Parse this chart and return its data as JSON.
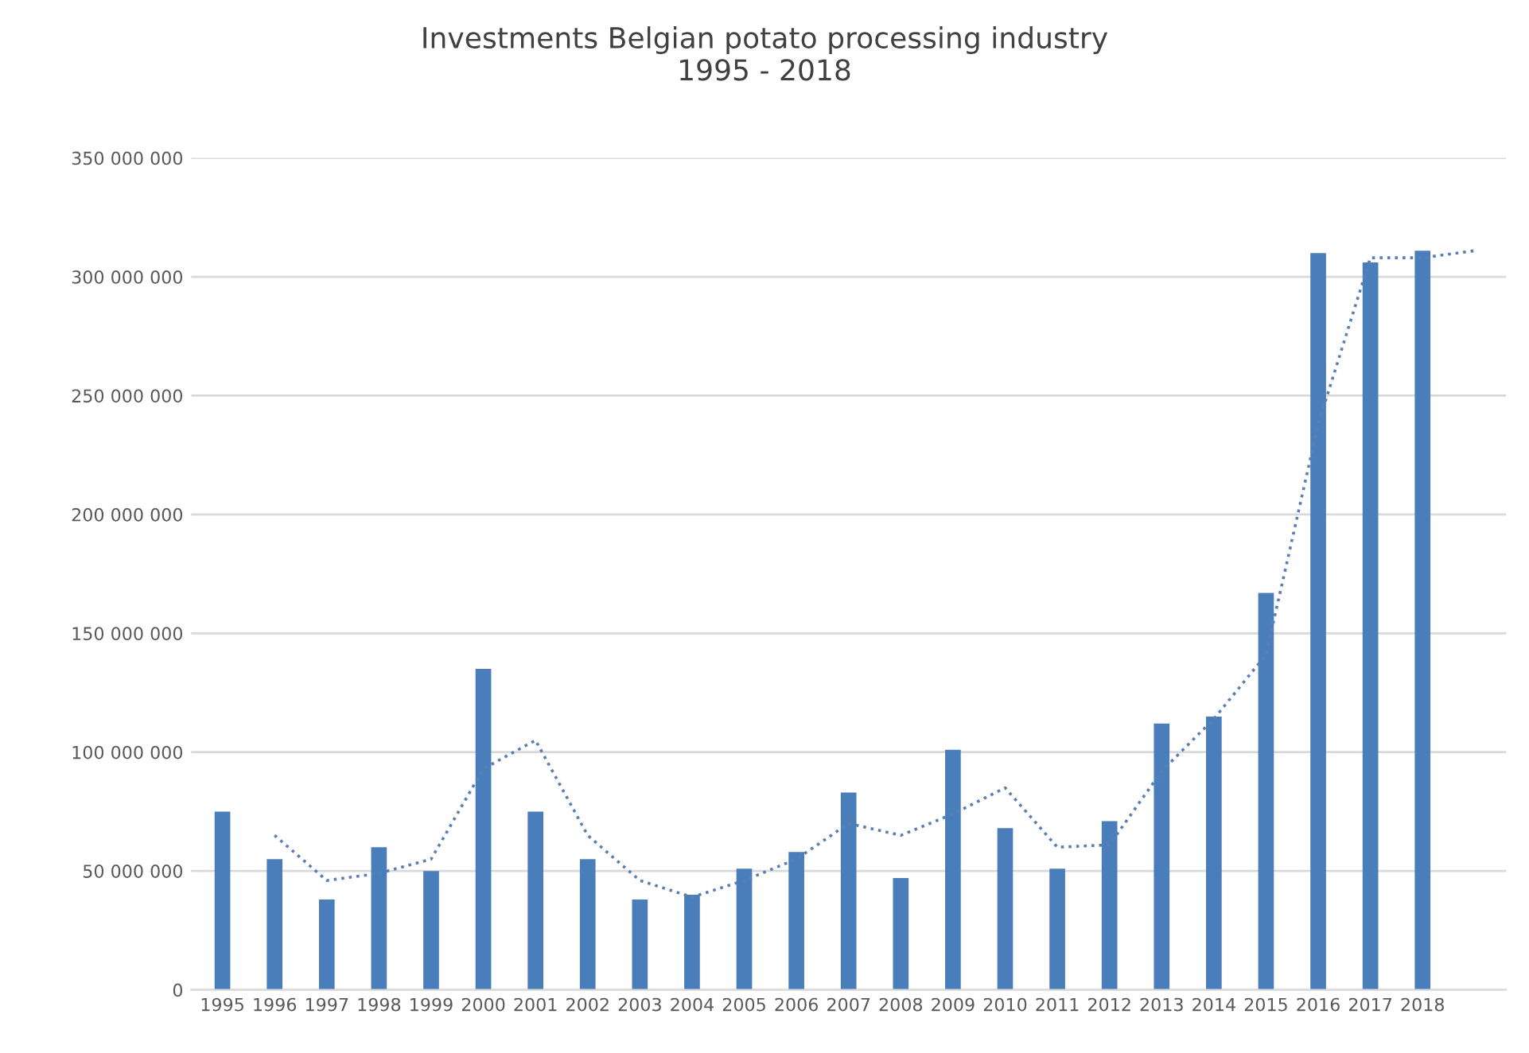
{
  "chart_data": {
    "type": "bar",
    "title": "Investments Belgian potato processing industry\n1995 - 2018",
    "categories": [
      "1995",
      "1996",
      "1997",
      "1998",
      "1999",
      "2000",
      "2001",
      "2002",
      "2003",
      "2004",
      "2005",
      "2006",
      "2007",
      "2008",
      "2009",
      "2010",
      "2011",
      "2012",
      "2013",
      "2014",
      "2015",
      "2016",
      "2017",
      "2018",
      null
    ],
    "series": [
      {
        "color": "#4a7ebb",
        "values": [
          75000000,
          55000000,
          38000000,
          60000000,
          50000000,
          135000000,
          75000000,
          55000000,
          38000000,
          40000000,
          51000000,
          58000000,
          83000000,
          47000000,
          101000000,
          68000000,
          51000000,
          71000000,
          112000000,
          115000000,
          167000000,
          310000000,
          306000000,
          311000000,
          null
        ]
      },
      {
        "type": "line",
        "color": "#5b7fb5",
        "line_style": "dotted",
        "values": [
          null,
          65000000,
          46000000,
          49000000,
          55000000,
          93000000,
          105000000,
          65000000,
          46000000,
          39000000,
          46000000,
          55000000,
          70000000,
          65000000,
          74000000,
          85000000,
          60000000,
          61000000,
          92000000,
          114000000,
          141000000,
          238000000,
          308000000,
          308000000,
          311000000
        ]
      }
    ],
    "ylim": [
      0,
      350000000
    ],
    "yticks": [
      0,
      {
        "value": 50000000,
        "label": "50 000 000"
      },
      {
        "value": 100000000,
        "label": "100 000 000"
      },
      {
        "value": 150000000,
        "label": "150 000 000"
      },
      {
        "value": 200000000,
        "label": "200 000 000"
      },
      {
        "value": 250000000,
        "label": "250 000 000"
      },
      {
        "value": 300000000,
        "label": "300 000 000"
      },
      {
        "value": 350000000,
        "label": "350 000 000"
      }
    ],
    "grid": "y"
  }
}
